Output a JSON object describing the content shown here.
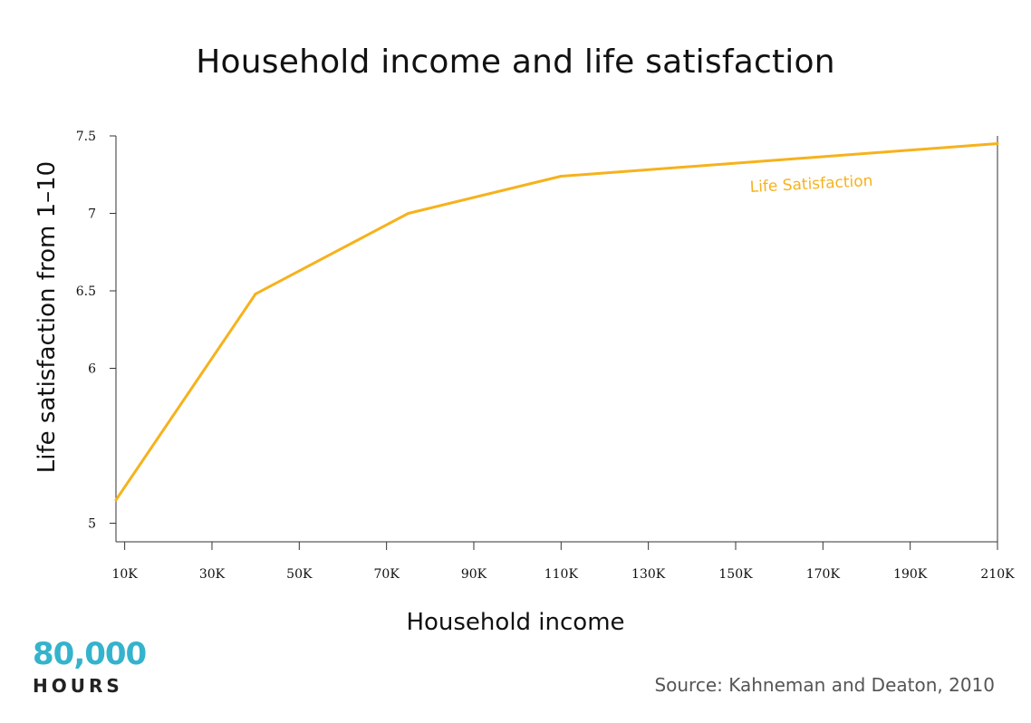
{
  "chart_data": {
    "type": "line",
    "title": "Household income and life satisfaction",
    "xlabel": "Household income",
    "ylabel": "Life satisfaction from 1–10",
    "x_tick_labels": [
      "10K",
      "30K",
      "50K",
      "70K",
      "90K",
      "110K",
      "130K",
      "150K",
      "170K",
      "190K",
      "210K"
    ],
    "x_tick_values": [
      10000,
      30000,
      50000,
      70000,
      90000,
      110000,
      130000,
      150000,
      170000,
      190000,
      210000
    ],
    "y_tick_labels": [
      "5",
      "6",
      "6.5",
      "7",
      "7.5"
    ],
    "y_tick_values": [
      5,
      6,
      6.5,
      7,
      7.5
    ],
    "xlim": [
      8000,
      210000
    ],
    "ylim": [
      4.88,
      7.5
    ],
    "series": [
      {
        "name": "Life Satisfaction",
        "color": "#f6b21c",
        "x": [
          8000,
          40000,
          75000,
          110000,
          210000
        ],
        "y": [
          5.15,
          6.48,
          7.0,
          7.24,
          7.45
        ]
      }
    ],
    "grid": false,
    "legend": "inline-label"
  },
  "branding": {
    "logo_number": "80,000",
    "logo_word": "HOURS"
  },
  "source": "Source: Kahneman and Deaton, 2010",
  "colors": {
    "line": "#f6b21c",
    "logo": "#34b3cc",
    "axis": "#333333"
  }
}
